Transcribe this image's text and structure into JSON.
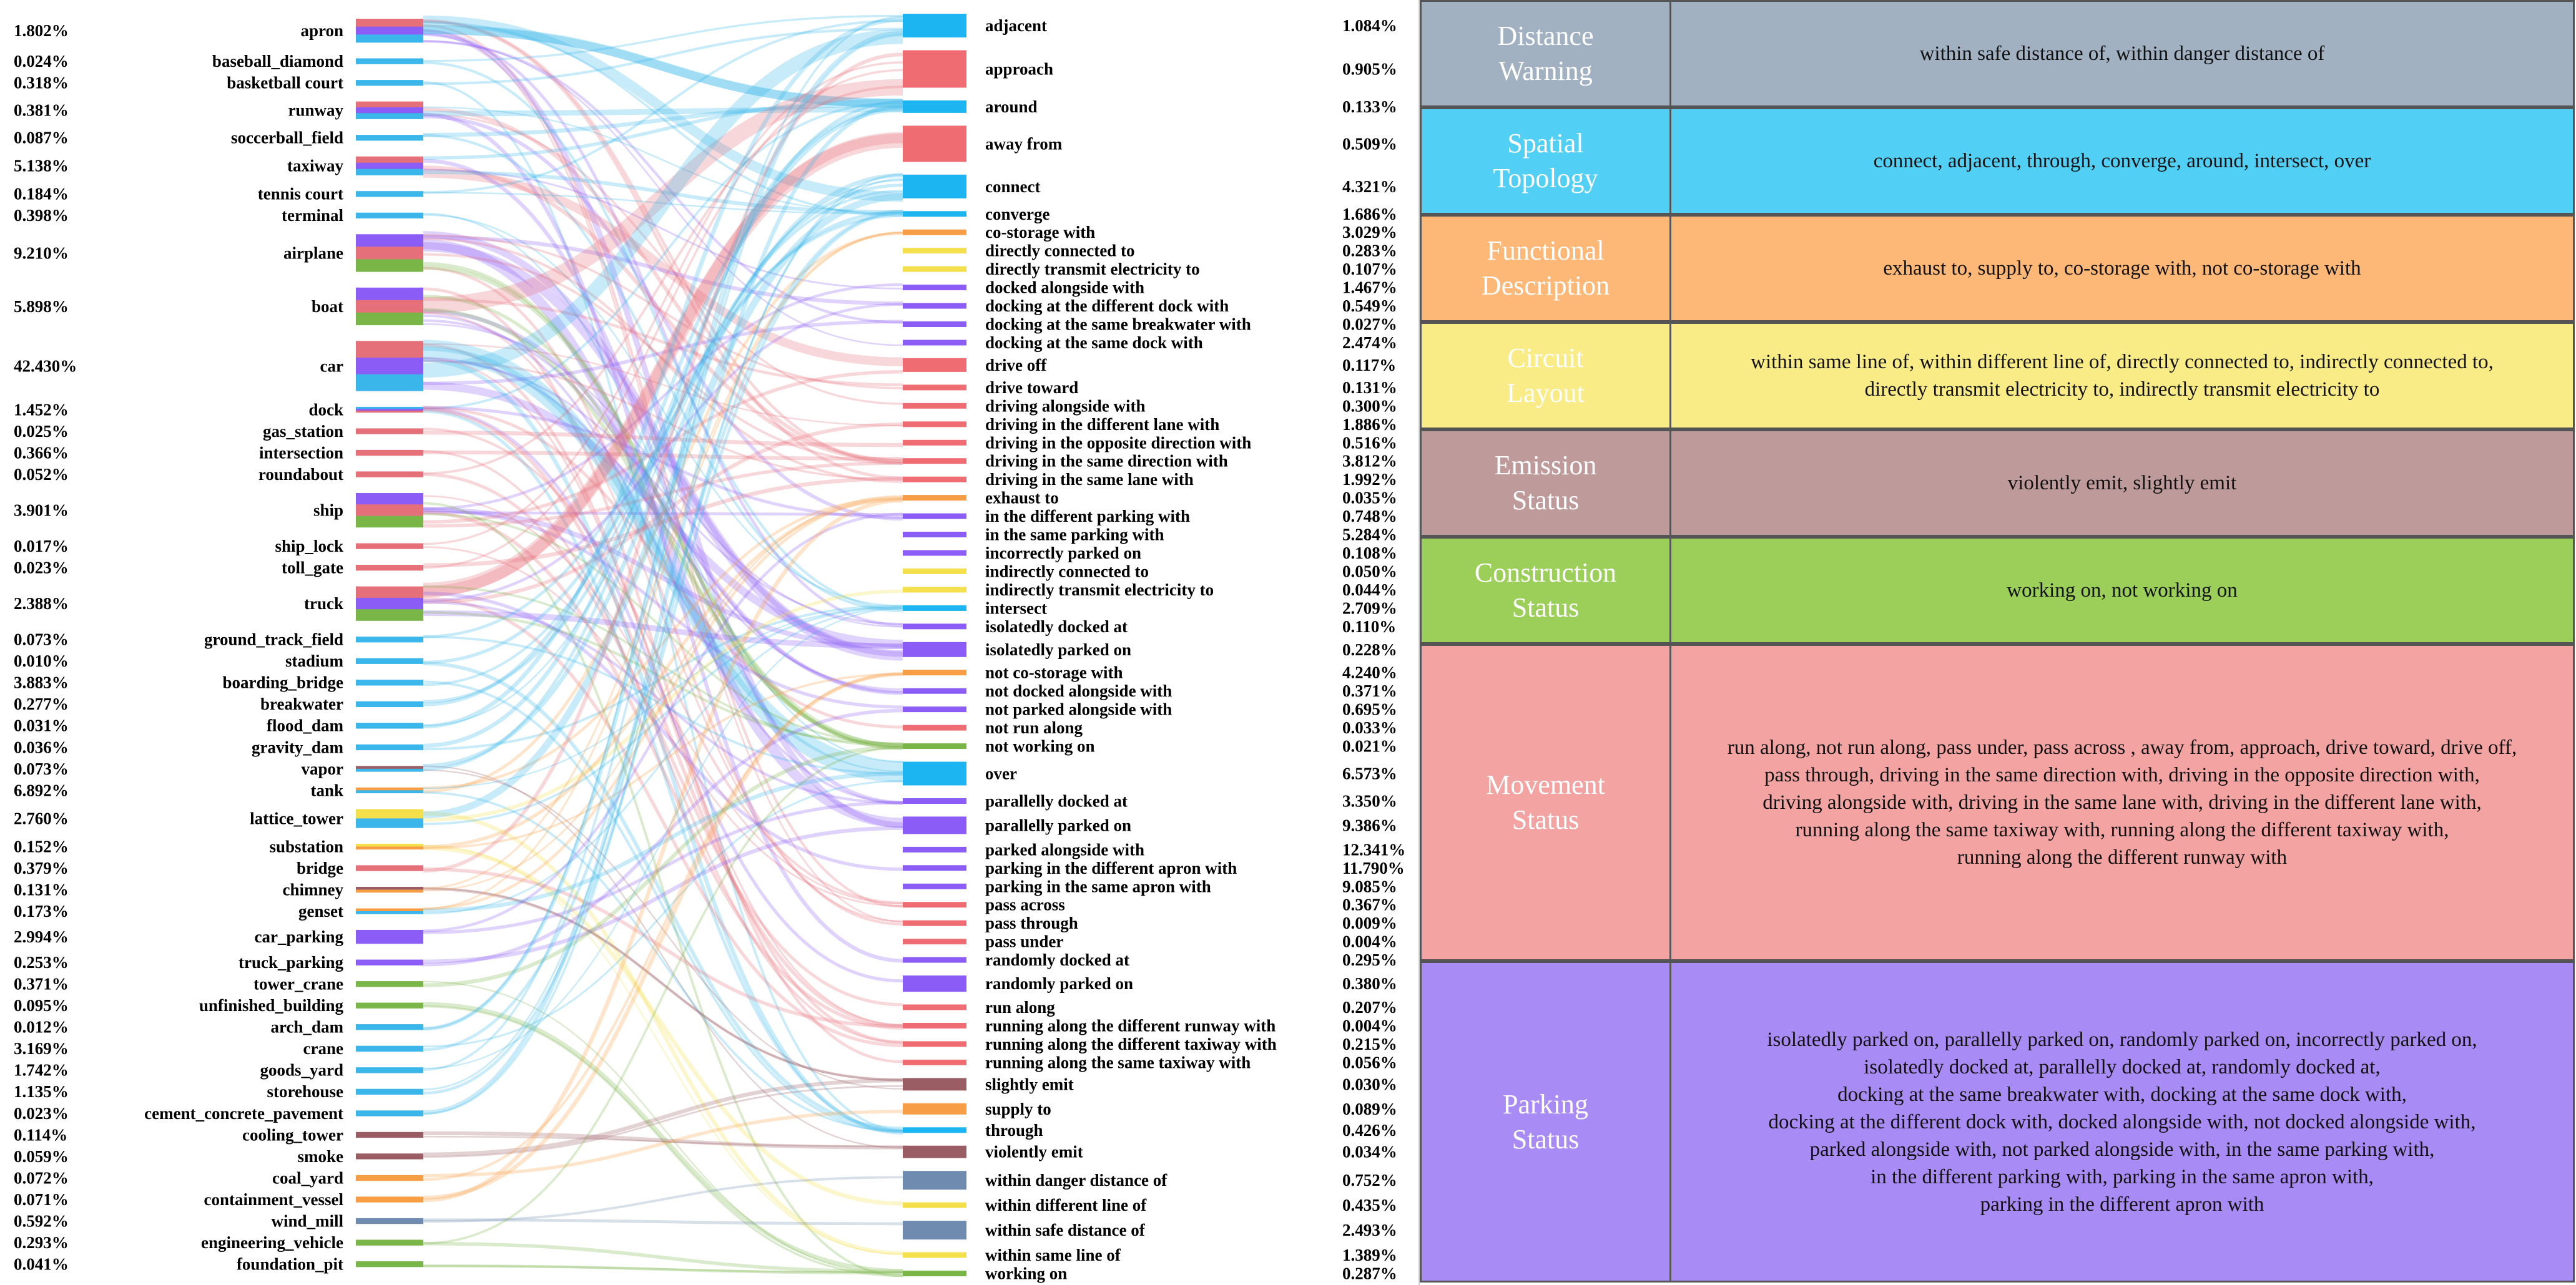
{
  "left_nodes": [
    {
      "name": "apron",
      "pct": "1.802%",
      "colors": [
        "#e5707a",
        "#8b5cf6",
        "#3ab6ea"
      ]
    },
    {
      "name": "baseball_diamond",
      "pct": "0.024%",
      "colors": [
        "#3ab6ea"
      ]
    },
    {
      "name": "basketball court",
      "pct": "0.318%",
      "colors": [
        "#3ab6ea"
      ]
    },
    {
      "name": "runway",
      "pct": "0.381%",
      "colors": [
        "#e5707a",
        "#8b5cf6",
        "#3ab6ea"
      ]
    },
    {
      "name": "soccerball_field",
      "pct": "0.087%",
      "colors": [
        "#3ab6ea"
      ]
    },
    {
      "name": "taxiway",
      "pct": "5.138%",
      "colors": [
        "#e5707a",
        "#8b5cf6",
        "#3ab6ea"
      ]
    },
    {
      "name": "tennis court",
      "pct": "0.184%",
      "colors": [
        "#3ab6ea"
      ]
    },
    {
      "name": "terminal",
      "pct": "0.398%",
      "colors": [
        "#3ab6ea"
      ]
    },
    {
      "name": "airplane",
      "pct": "9.210%",
      "colors": [
        "#8b5cf6",
        "#e5707a",
        "#7ab547"
      ]
    },
    {
      "name": "boat",
      "pct": "5.898%",
      "colors": [
        "#8b5cf6",
        "#e5707a",
        "#7ab547"
      ]
    },
    {
      "name": "car",
      "pct": "42.430%",
      "colors": [
        "#e5707a",
        "#8b5cf6",
        "#3ab6ea"
      ]
    },
    {
      "name": "dock",
      "pct": "1.452%",
      "colors": [
        "#3ab6ea",
        "#8b5cf6",
        "#e5707a"
      ]
    },
    {
      "name": "gas_station",
      "pct": "0.025%",
      "colors": [
        "#e5707a"
      ]
    },
    {
      "name": "intersection",
      "pct": "0.366%",
      "colors": [
        "#e5707a"
      ]
    },
    {
      "name": "roundabout",
      "pct": "0.052%",
      "colors": [
        "#e5707a"
      ]
    },
    {
      "name": "ship",
      "pct": "3.901%",
      "colors": [
        "#8b5cf6",
        "#e5707a",
        "#7ab547"
      ]
    },
    {
      "name": "ship_lock",
      "pct": "0.017%",
      "colors": [
        "#e5707a"
      ]
    },
    {
      "name": "toll_gate",
      "pct": "0.023%",
      "colors": [
        "#e5707a"
      ]
    },
    {
      "name": "truck",
      "pct": "2.388%",
      "colors": [
        "#e5707a",
        "#8b5cf6",
        "#7ab547"
      ]
    },
    {
      "name": "ground_track_field",
      "pct": "0.073%",
      "colors": [
        "#3ab6ea"
      ]
    },
    {
      "name": "stadium",
      "pct": "0.010%",
      "colors": [
        "#3ab6ea"
      ]
    },
    {
      "name": "boarding_bridge",
      "pct": "3.883%",
      "colors": [
        "#3ab6ea"
      ]
    },
    {
      "name": "breakwater",
      "pct": "0.277%",
      "colors": [
        "#3ab6ea"
      ]
    },
    {
      "name": "flood_dam",
      "pct": "0.031%",
      "colors": [
        "#3ab6ea"
      ]
    },
    {
      "name": "gravity_dam",
      "pct": "0.036%",
      "colors": [
        "#3ab6ea"
      ]
    },
    {
      "name": "vapor",
      "pct": "0.073%",
      "colors": [
        "#9a5d63",
        "#3ab6ea"
      ]
    },
    {
      "name": "tank",
      "pct": "6.892%",
      "colors": [
        "#f79d45",
        "#3ab6ea"
      ]
    },
    {
      "name": "lattice_tower",
      "pct": "2.760%",
      "colors": [
        "#f4e04d",
        "#3ab6ea"
      ]
    },
    {
      "name": "substation",
      "pct": "0.152%",
      "colors": [
        "#f4e04d",
        "#f79d45"
      ]
    },
    {
      "name": "bridge",
      "pct": "0.379%",
      "colors": [
        "#e5707a"
      ]
    },
    {
      "name": "chimney",
      "pct": "0.131%",
      "colors": [
        "#9a5d63",
        "#f79d45"
      ]
    },
    {
      "name": "genset",
      "pct": "0.173%",
      "colors": [
        "#f79d45",
        "#3ab6ea"
      ]
    },
    {
      "name": "car_parking",
      "pct": "2.994%",
      "colors": [
        "#8b5cf6"
      ]
    },
    {
      "name": "truck_parking",
      "pct": "0.253%",
      "colors": [
        "#8b5cf6"
      ]
    },
    {
      "name": "tower_crane",
      "pct": "0.371%",
      "colors": [
        "#7ab547"
      ]
    },
    {
      "name": "unfinished_building",
      "pct": "0.095%",
      "colors": [
        "#7ab547"
      ]
    },
    {
      "name": "arch_dam",
      "pct": "0.012%",
      "colors": [
        "#3ab6ea"
      ]
    },
    {
      "name": "crane",
      "pct": "3.169%",
      "colors": [
        "#3ab6ea"
      ]
    },
    {
      "name": "goods_yard",
      "pct": "1.742%",
      "colors": [
        "#3ab6ea"
      ]
    },
    {
      "name": "storehouse",
      "pct": "1.135%",
      "colors": [
        "#3ab6ea"
      ]
    },
    {
      "name": "cement_concrete_pavement",
      "pct": "0.023%",
      "colors": [
        "#3ab6ea"
      ]
    },
    {
      "name": "cooling_tower",
      "pct": "0.114%",
      "colors": [
        "#9a5d63"
      ]
    },
    {
      "name": "smoke",
      "pct": "0.059%",
      "colors": [
        "#9a5d63"
      ]
    },
    {
      "name": "coal_yard",
      "pct": "0.072%",
      "colors": [
        "#f79d45"
      ]
    },
    {
      "name": "containment_vessel",
      "pct": "0.071%",
      "colors": [
        "#f79d45"
      ]
    },
    {
      "name": "wind_mill",
      "pct": "0.592%",
      "colors": [
        "#6f8bb0"
      ]
    },
    {
      "name": "engineering_vehicle",
      "pct": "0.293%",
      "colors": [
        "#7ab547"
      ]
    },
    {
      "name": "foundation_pit",
      "pct": "0.041%",
      "colors": [
        "#7ab547"
      ]
    }
  ],
  "right_nodes": [
    {
      "name": "adjacent",
      "pct": "1.084%",
      "color": "#1cb5f2"
    },
    {
      "name": "approach",
      "pct": "0.905%",
      "color": "#ef6d72"
    },
    {
      "name": "around",
      "pct": "0.133%",
      "color": "#1cb5f2"
    },
    {
      "name": "away from",
      "pct": "0.509%",
      "color": "#ef6d72"
    },
    {
      "name": "connect",
      "pct": "4.321%",
      "color": "#1cb5f2"
    },
    {
      "name": "converge",
      "pct": "1.686%",
      "color": "#1cb5f2"
    },
    {
      "name": "co-storage with",
      "pct": "3.029%",
      "color": "#f79d45"
    },
    {
      "name": "directly connected to",
      "pct": "0.283%",
      "color": "#f4e04d"
    },
    {
      "name": "directly transmit electricity to",
      "pct": "0.107%",
      "color": "#f4e04d"
    },
    {
      "name": "docked alongside with",
      "pct": "1.467%",
      "color": "#8b5cf6"
    },
    {
      "name": "docking at the different dock with",
      "pct": "0.549%",
      "color": "#8b5cf6"
    },
    {
      "name": "docking at the same breakwater with",
      "pct": "0.027%",
      "color": "#8b5cf6"
    },
    {
      "name": "docking at the same dock with",
      "pct": "2.474%",
      "color": "#8b5cf6"
    },
    {
      "name": "drive off",
      "pct": "0.117%",
      "color": "#ef6d72"
    },
    {
      "name": "drive toward",
      "pct": "0.131%",
      "color": "#ef6d72"
    },
    {
      "name": "driving alongside with",
      "pct": "0.300%",
      "color": "#ef6d72"
    },
    {
      "name": "driving in the different lane with",
      "pct": "1.886%",
      "color": "#ef6d72"
    },
    {
      "name": "driving in the opposite direction with",
      "pct": "0.516%",
      "color": "#ef6d72"
    },
    {
      "name": "driving in the same direction with",
      "pct": "3.812%",
      "color": "#ef6d72"
    },
    {
      "name": "driving in the same lane with",
      "pct": "1.992%",
      "color": "#ef6d72"
    },
    {
      "name": "exhaust to",
      "pct": "0.035%",
      "color": "#f79d45"
    },
    {
      "name": "in the different parking with",
      "pct": "0.748%",
      "color": "#8b5cf6"
    },
    {
      "name": "in the same parking with",
      "pct": "5.284%",
      "color": "#8b5cf6"
    },
    {
      "name": "incorrectly parked on",
      "pct": "0.108%",
      "color": "#8b5cf6"
    },
    {
      "name": "indirectly connected to",
      "pct": "0.050%",
      "color": "#f4e04d"
    },
    {
      "name": "indirectly transmit electricity to",
      "pct": "0.044%",
      "color": "#f4e04d"
    },
    {
      "name": "intersect",
      "pct": "2.709%",
      "color": "#1cb5f2"
    },
    {
      "name": "isolatedly docked at",
      "pct": "0.110%",
      "color": "#8b5cf6"
    },
    {
      "name": "isolatedly parked on",
      "pct": "0.228%",
      "color": "#8b5cf6"
    },
    {
      "name": "not co-storage with",
      "pct": "4.240%",
      "color": "#f79d45"
    },
    {
      "name": "not docked alongside with",
      "pct": "0.371%",
      "color": "#8b5cf6"
    },
    {
      "name": "not parked alongside with",
      "pct": "0.695%",
      "color": "#8b5cf6"
    },
    {
      "name": "not run along",
      "pct": "0.033%",
      "color": "#ef6d72"
    },
    {
      "name": "not working on",
      "pct": "0.021%",
      "color": "#7ab547"
    },
    {
      "name": "over",
      "pct": "6.573%",
      "color": "#1cb5f2"
    },
    {
      "name": "parallelly docked at",
      "pct": "3.350%",
      "color": "#8b5cf6"
    },
    {
      "name": "parallelly parked on",
      "pct": "9.386%",
      "color": "#8b5cf6"
    },
    {
      "name": "parked alongside with",
      "pct": "12.341%",
      "color": "#8b5cf6"
    },
    {
      "name": "parking in the different apron with",
      "pct": "11.790%",
      "color": "#8b5cf6"
    },
    {
      "name": "parking in the same apron with",
      "pct": "9.085%",
      "color": "#8b5cf6"
    },
    {
      "name": "pass across",
      "pct": "0.367%",
      "color": "#ef6d72"
    },
    {
      "name": "pass through",
      "pct": "0.009%",
      "color": "#ef6d72"
    },
    {
      "name": "pass under",
      "pct": "0.004%",
      "color": "#ef6d72"
    },
    {
      "name": "randomly docked at",
      "pct": "0.295%",
      "color": "#8b5cf6"
    },
    {
      "name": "randomly parked on",
      "pct": "0.380%",
      "color": "#8b5cf6"
    },
    {
      "name": "run along",
      "pct": "0.207%",
      "color": "#ef6d72"
    },
    {
      "name": "running along the different runway with",
      "pct": "0.004%",
      "color": "#ef6d72"
    },
    {
      "name": "running along the different taxiway with",
      "pct": "0.215%",
      "color": "#ef6d72"
    },
    {
      "name": "running along the same taxiway with",
      "pct": "0.056%",
      "color": "#ef6d72"
    },
    {
      "name": "slightly emit",
      "pct": "0.030%",
      "color": "#9a5d63"
    },
    {
      "name": "supply to",
      "pct": "0.089%",
      "color": "#f79d45"
    },
    {
      "name": "through",
      "pct": "0.426%",
      "color": "#1cb5f2"
    },
    {
      "name": "violently emit",
      "pct": "0.034%",
      "color": "#9a5d63"
    },
    {
      "name": "within danger distance of",
      "pct": "0.752%",
      "color": "#6f8bb0"
    },
    {
      "name": "within different line of",
      "pct": "0.435%",
      "color": "#f4e04d"
    },
    {
      "name": "within safe distance of",
      "pct": "2.493%",
      "color": "#6f8bb0"
    },
    {
      "name": "within same line of",
      "pct": "1.389%",
      "color": "#f4e04d"
    },
    {
      "name": "working on",
      "pct": "0.287%",
      "color": "#7ab547"
    }
  ],
  "categories": [
    {
      "name": "Distance\nWarning",
      "desc": "within safe distance of, within danger distance of",
      "bg": "#a1b1c2",
      "desc_bg": "#a1b1c2",
      "name_color": "#ffffff"
    },
    {
      "name": "Spatial\nTopology",
      "desc": "connect, adjacent, through, converge, around, intersect, over",
      "bg": "#52cff5",
      "desc_bg": "#52cff5",
      "name_color": "#ffffff"
    },
    {
      "name": "Functional\nDescription",
      "desc": "exhaust to, supply to, co-storage with, not co-storage with",
      "bg": "#fdb877",
      "desc_bg": "#fdb877",
      "name_color": "#ffffff"
    },
    {
      "name": "Circuit\nLayout",
      "desc": "within same line of, within different line of, directly connected to, indirectly connected to,\ndirectly transmit electricity to, indirectly transmit electricity to",
      "bg": "#f9ec87",
      "desc_bg": "#f9ec87",
      "name_color": "#ffffff"
    },
    {
      "name": "Emission\nStatus",
      "desc": "violently emit, slightly emit",
      "bg": "#bf9a9b",
      "desc_bg": "#bf9a9b",
      "name_color": "#ffffff"
    },
    {
      "name": "Construction\nStatus",
      "desc": "working on, not working on",
      "bg": "#9ccf59",
      "desc_bg": "#9ccf59",
      "name_color": "#ffffff"
    },
    {
      "name": "Movement\nStatus",
      "desc": "run along, not run along, pass under, pass across , away from, approach, drive toward, drive off,\npass through, driving in the same direction with, driving in the opposite direction with,\ndriving alongside with, driving in the same lane with, driving in the different lane with,\nrunning along the same taxiway with, running along the different taxiway with,\nrunning along the different runway with",
      "bg": "#f4a3a3",
      "desc_bg": "#f4a3a3",
      "name_color": "#ffffff"
    },
    {
      "name": "Parking\nStatus",
      "desc": "isolatedly parked on, parallelly parked on, randomly parked on, incorrectly parked on,\nisolatedly docked at, parallelly docked at, randomly docked at,\ndocking at the same breakwater with, docking at the same dock with,\ndocking at the different dock with, docked alongside with, not docked alongside with,\nparked alongside with, not parked alongside with, in the same parking with,\nin the different parking with, parking in the same apron with,\nparking in the different apron with",
      "bg": "#a98bf6",
      "desc_bg": "#a98bf6",
      "name_color": "#ffffff"
    }
  ]
}
